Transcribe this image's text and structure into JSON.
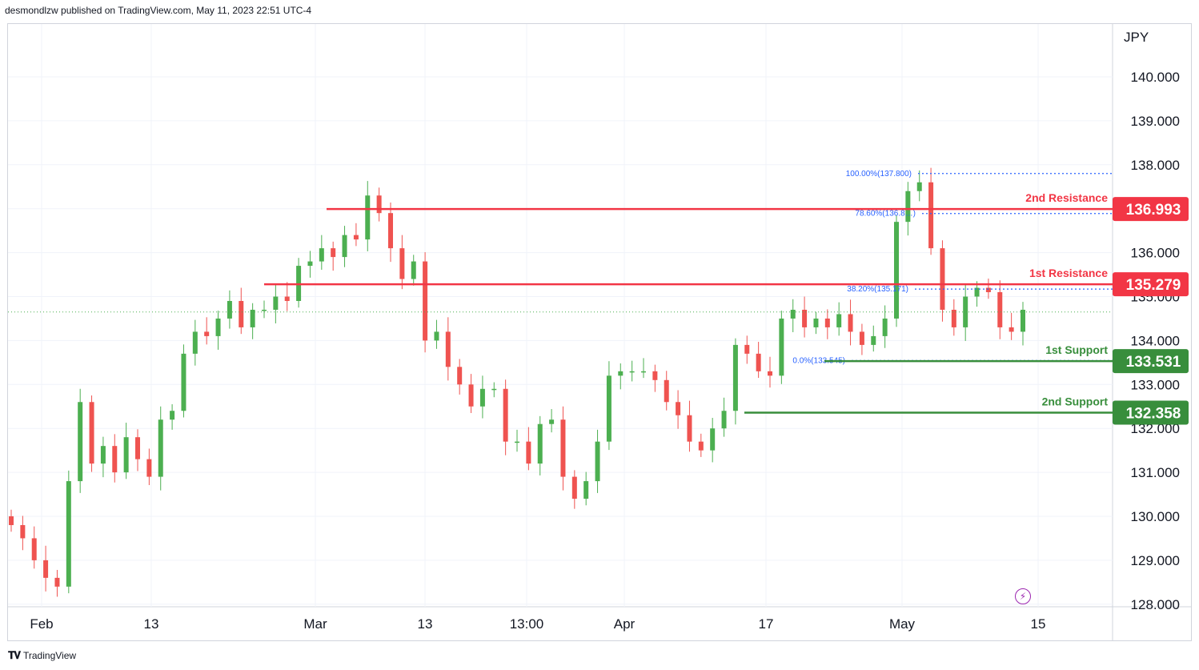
{
  "header": {
    "publisher_text": "desmondlzw published on TradingView.com, May 11, 2023 22:51 UTC-4"
  },
  "footer": {
    "logo_text": "TradingView"
  },
  "chart_data": {
    "type": "candlestick",
    "currency_label": "JPY",
    "y_ticks": [
      "140.000",
      "139.000",
      "138.000",
      "137.000",
      "136.000",
      "135.000",
      "134.000",
      "133.000",
      "132.000",
      "131.000",
      "130.000",
      "129.000",
      "128.000"
    ],
    "x_ticks": [
      "Feb",
      "13",
      "Mar",
      "13",
      "13:00",
      "Apr",
      "17",
      "May",
      "15"
    ],
    "ylim": [
      127.7,
      141.0
    ],
    "close_series": [
      129.8,
      129.5,
      129.0,
      128.6,
      128.4,
      130.8,
      132.6,
      131.2,
      131.6,
      131.0,
      131.8,
      131.3,
      130.9,
      132.2,
      132.4,
      133.7,
      134.2,
      134.1,
      134.5,
      134.9,
      134.3,
      134.7,
      134.7,
      135.0,
      134.9,
      135.7,
      135.8,
      136.1,
      135.9,
      136.4,
      136.3,
      137.3,
      136.9,
      136.1,
      135.4,
      135.8,
      134.0,
      134.2,
      133.4,
      133.0,
      132.5,
      132.9,
      132.9,
      131.7,
      131.7,
      131.2,
      132.1,
      132.2,
      130.9,
      130.4,
      130.8,
      131.7,
      133.2,
      133.3,
      133.3,
      133.3,
      133.1,
      132.6,
      132.3,
      131.7,
      131.5,
      132.0,
      132.4,
      133.9,
      133.7,
      133.3,
      133.2,
      134.5,
      134.7,
      134.3,
      134.5,
      134.3,
      134.6,
      134.2,
      133.9,
      134.1,
      134.5,
      136.7,
      137.4,
      137.6,
      136.1,
      134.7,
      134.3,
      135.0,
      135.2,
      135.1,
      134.3,
      134.2,
      134.7
    ],
    "annotations": {
      "resistance_2": {
        "label": "2nd Resistance",
        "price_label": "136.993",
        "value": 136.993
      },
      "resistance_1": {
        "label": "1st Resistance",
        "price_label": "135.279",
        "value": 135.279
      },
      "support_1": {
        "label": "1st Support",
        "price_label": "133.531",
        "value": 133.531
      },
      "support_2": {
        "label": "2nd Support",
        "price_label": "132.358",
        "value": 132.358
      },
      "fibonacci": [
        {
          "label": "100.00%(137.800)",
          "value": 137.8
        },
        {
          "label": "78.60%(136.8…)",
          "value": 136.89
        },
        {
          "label": "38.20%(135.171)",
          "value": 135.171
        },
        {
          "label": "0.0%(133.545)",
          "value": 133.545
        }
      ],
      "current_price": 134.65
    },
    "colors": {
      "up": "#26a69a",
      "up_line": "#4caf50",
      "down": "#ef5350",
      "resistance": "#f23645",
      "support": "#388e3c",
      "fib": "#2962ff",
      "grid": "#f0f3fa",
      "text": "#131722"
    }
  }
}
